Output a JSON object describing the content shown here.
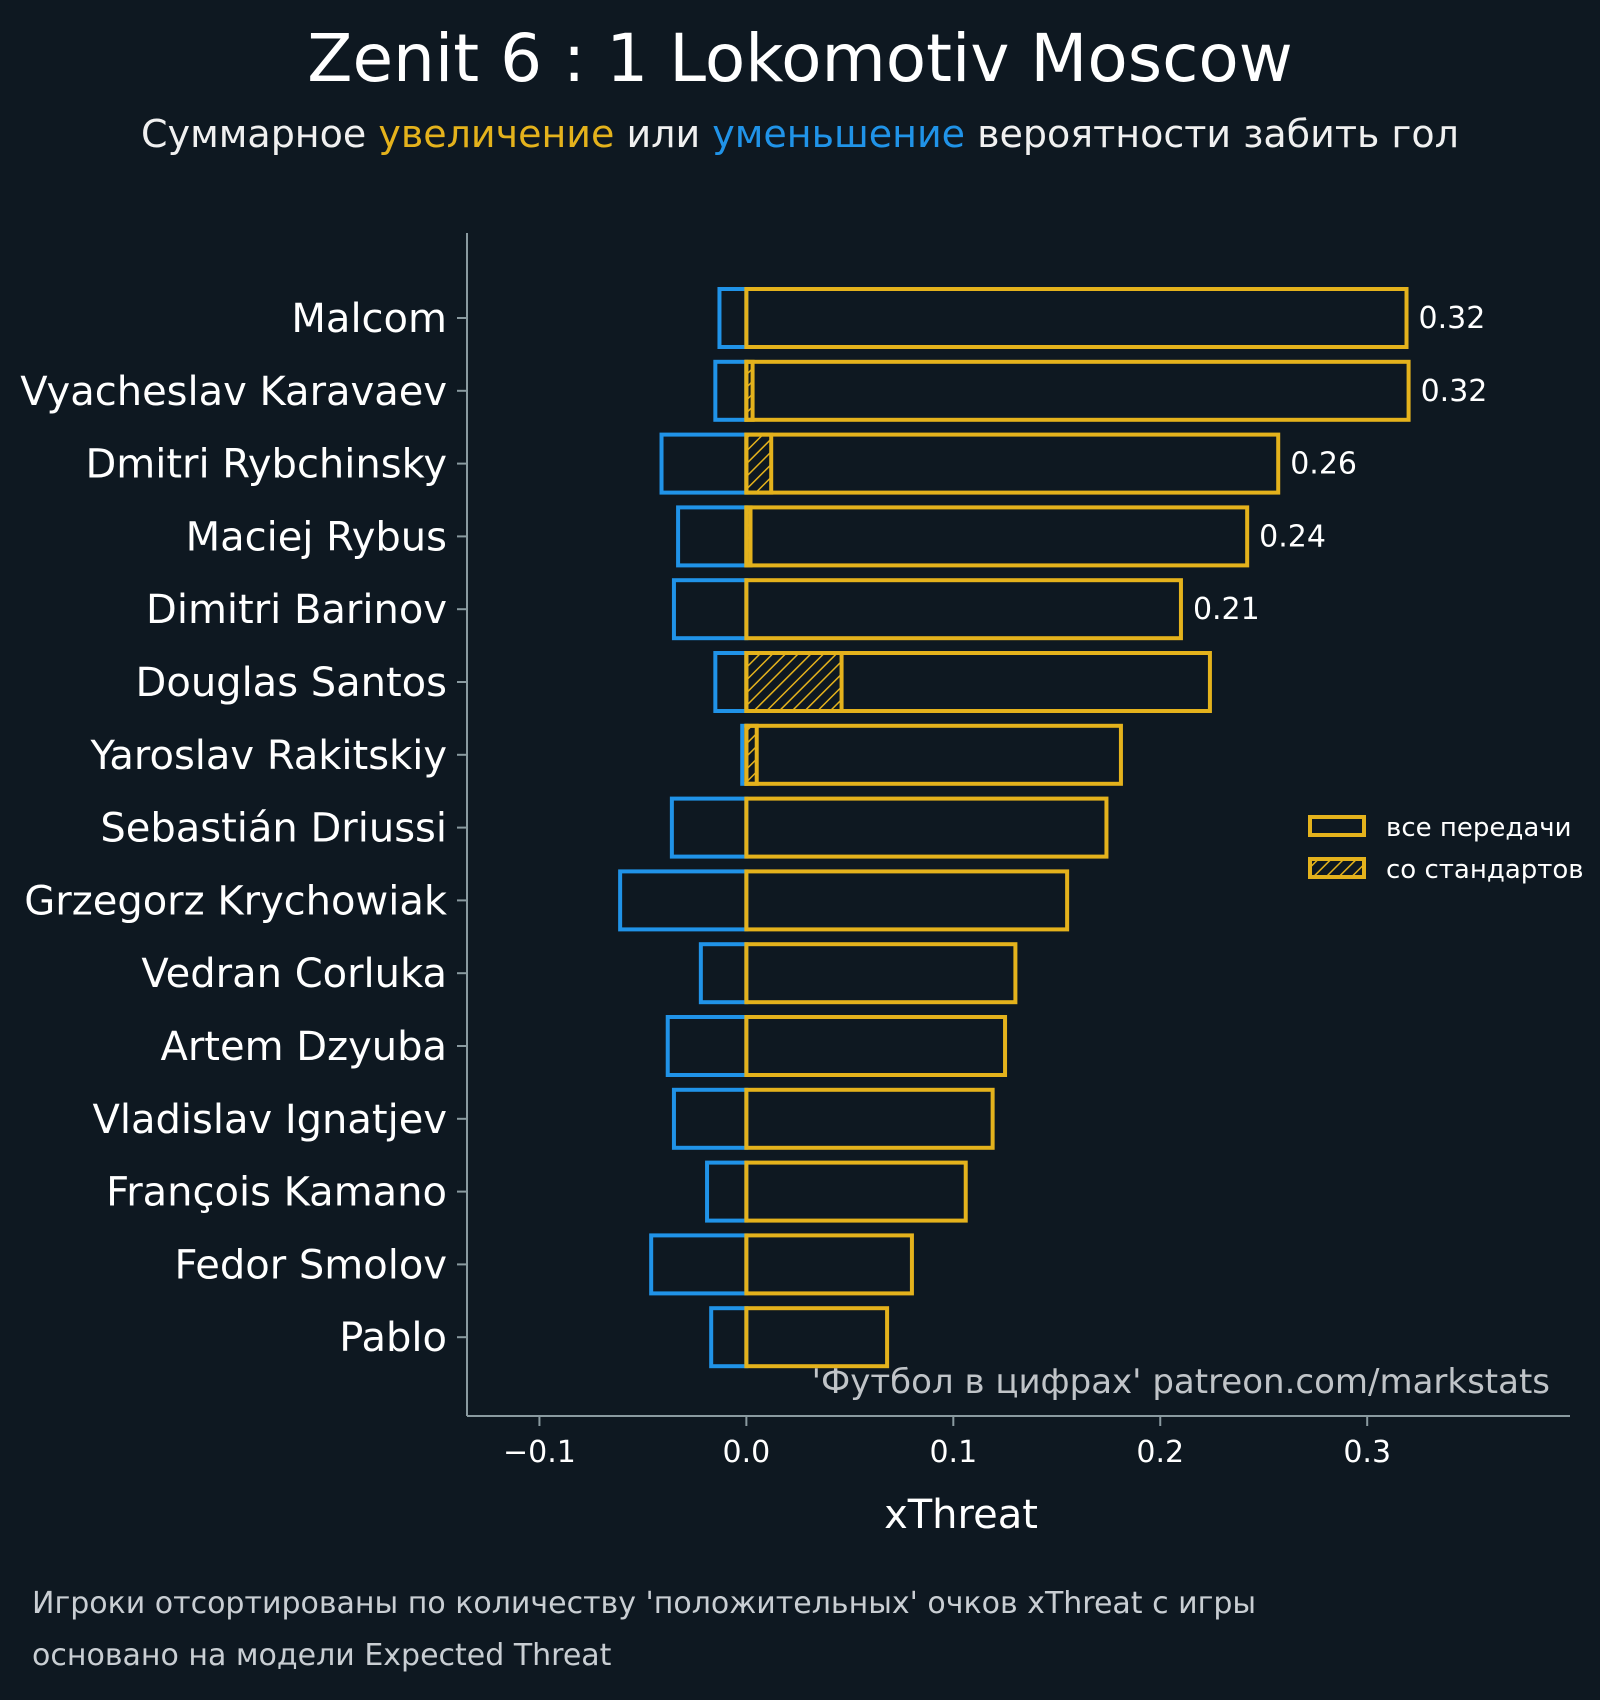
{
  "title": "Zenit 6 : 1 Lokomotiv Moscow",
  "subtitle": {
    "part1": "Суммарное ",
    "increase": "увеличение",
    "part2": " или ",
    "decrease": "уменьшение",
    "part3": " вероятности забить гол"
  },
  "colors": {
    "background": "#0e1821",
    "positive": "#e4b21c",
    "negative": "#2093e8",
    "axis": "#8a9aa0",
    "text": "#f2f2f2",
    "watermark": "#c0c4c8"
  },
  "watermark": "'Футбол в цифрах' patreon.com/markstats",
  "footnote": [
    "Игроки отсортированы по количеству 'положительных' очков xThreat с игры",
    "основано на модели Expected Threat"
  ],
  "chart_data": {
    "type": "bar",
    "orientation": "horizontal",
    "categories": [
      "Malcom",
      "Vyacheslav Karavaev",
      "Dmitri Rybchinsky",
      "Maciej Rybus",
      "Dimitri Barinov",
      "Douglas Santos",
      "Yaroslav Rakitskiy",
      "Sebastián Driussi",
      "Grzegorz Krychowiak",
      "Vedran Corluka",
      "Artem Dzyuba",
      "Vladislav Ignatjev",
      "François Kamano",
      "Fedor Smolov",
      "Pablo"
    ],
    "series": [
      {
        "name": "все передачи",
        "kind": "positive",
        "values": [
          0.319,
          0.32,
          0.257,
          0.242,
          0.21,
          0.224,
          0.181,
          0.174,
          0.155,
          0.13,
          0.125,
          0.119,
          0.106,
          0.08,
          0.068
        ]
      },
      {
        "name": "со стандартов",
        "kind": "set-piece",
        "values": [
          0,
          0.003,
          0.012,
          0.002,
          0,
          0.046,
          0.005,
          0,
          0,
          0,
          0,
          0,
          0,
          0,
          0
        ]
      },
      {
        "kind": "negative",
        "values": [
          -0.013,
          -0.015,
          -0.041,
          -0.033,
          -0.035,
          -0.015,
          -0.002,
          -0.036,
          -0.061,
          -0.022,
          -0.038,
          -0.035,
          -0.019,
          -0.046,
          -0.017
        ]
      }
    ],
    "value_labels": [
      "0.32",
      "0.32",
      "0.26",
      "0.24",
      "0.21",
      "",
      "",
      "",
      "",
      "",
      "",
      "",
      "",
      "",
      ""
    ],
    "xlabel": "xThreat",
    "xlim": [
      -0.135,
      0.398
    ],
    "xticks": [
      -0.1,
      0.0,
      0.1,
      0.2,
      0.3
    ],
    "xtick_labels": [
      "−0.1",
      "0.0",
      "0.1",
      "0.2",
      "0.3"
    ],
    "grid": false,
    "legend_position": "right"
  }
}
